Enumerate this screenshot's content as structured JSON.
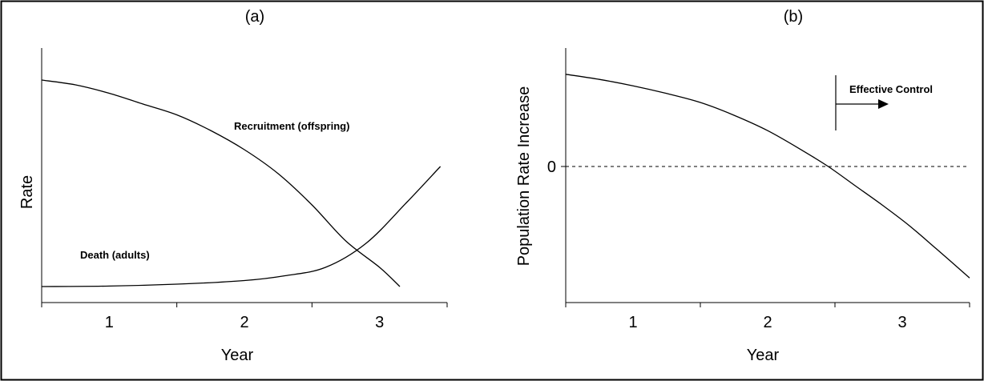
{
  "chart_data": [
    {
      "type": "line",
      "title": "(a)",
      "xlabel": "Year",
      "ylabel": "Rate",
      "xlim": [
        0.5,
        3.5
      ],
      "ylim": [
        0,
        1
      ],
      "x_ticks": [
        "1",
        "2",
        "3"
      ],
      "series": [
        {
          "name": "Recruitment (offspring)",
          "x": [
            0.5,
            0.75,
            1.0,
            1.25,
            1.5,
            1.75,
            2.0,
            2.25,
            2.5,
            2.75,
            3.0,
            3.15
          ],
          "y": [
            0.9,
            0.88,
            0.845,
            0.8,
            0.755,
            0.69,
            0.61,
            0.51,
            0.38,
            0.23,
            0.12,
            0.04
          ]
        },
        {
          "name": "Death (adults)",
          "x": [
            0.5,
            1.0,
            1.5,
            2.0,
            2.3,
            2.6,
            2.9,
            3.2,
            3.45
          ],
          "y": [
            0.04,
            0.042,
            0.05,
            0.065,
            0.085,
            0.12,
            0.22,
            0.39,
            0.54
          ]
        }
      ],
      "annotations": [
        "Recruitment (offspring)",
        "Death (adults)"
      ],
      "grid": false,
      "legend": "none"
    },
    {
      "type": "line",
      "title": "(b)",
      "xlabel": "Year",
      "ylabel": "Population Rate Increase",
      "xlim": [
        0.5,
        3.5
      ],
      "ylim": [
        -1,
        0.9
      ],
      "x_ticks": [
        "1",
        "2",
        "3"
      ],
      "y_ticks": [
        "0"
      ],
      "series": [
        {
          "name": "",
          "x": [
            0.5,
            0.75,
            1.0,
            1.25,
            1.5,
            1.75,
            2.0,
            2.25,
            2.45,
            2.65,
            2.85,
            3.05,
            3.25,
            3.5
          ],
          "y": [
            0.72,
            0.68,
            0.63,
            0.57,
            0.5,
            0.4,
            0.28,
            0.13,
            0.0,
            -0.15,
            -0.3,
            -0.46,
            -0.64,
            -0.87
          ]
        }
      ],
      "reference_line": {
        "y": 0,
        "style": "dashed"
      },
      "annotation": {
        "text": "Effective Control",
        "arrow": "right"
      },
      "grid": false,
      "legend": "none"
    }
  ]
}
